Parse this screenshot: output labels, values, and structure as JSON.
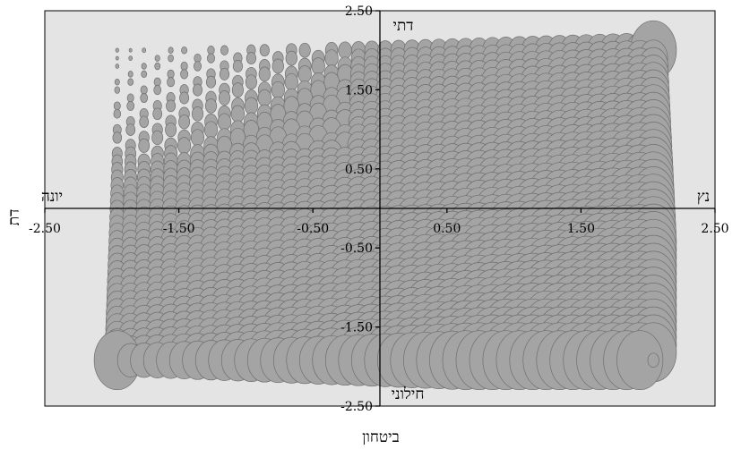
{
  "chart_data": {
    "type": "scatter",
    "variant": "bubble",
    "xlabel": "ביטחון",
    "ylabel": "דת",
    "xlim": [
      -2.5,
      2.5
    ],
    "ylim": [
      -2.5,
      2.5
    ],
    "x_ticks": [
      -2.5,
      -1.5,
      -0.5,
      0.5,
      1.5,
      2.5
    ],
    "x_tick_labels": [
      "-2.50",
      "-1.50",
      "-0.50",
      "0.50",
      "1.50",
      "2.50"
    ],
    "y_ticks": [
      2.5,
      1.5,
      0.5,
      -0.5,
      -1.5,
      -2.5
    ],
    "y_tick_labels": [
      "2.50",
      "1.50",
      "0.50",
      "-0.50",
      "-1.50",
      "-2.50"
    ],
    "axis_end_labels": {
      "x_left": "יונה",
      "x_right": "נץ",
      "y_top": "דתי",
      "y_bottom": "חילוני"
    },
    "grid": false,
    "legend": "none",
    "background_color": "#e4e4e4",
    "bubble_color": "#a4a4a4",
    "bubble_edge_color": "#6f6f6f",
    "grid_x_range": [
      -1.96,
      2.04
    ],
    "grid_y_range": [
      -1.92,
      2.0
    ],
    "grid_columns": 41,
    "grid_rows": 40,
    "highlight_points": [
      {
        "x": -1.96,
        "y": 2.0,
        "size": 0.07
      },
      {
        "x": 2.04,
        "y": 2.0,
        "size": 1.0
      },
      {
        "x": 2.04,
        "y": 1.24,
        "size": 0.38
      },
      {
        "x": -1.96,
        "y": -1.92,
        "size": 1.0
      },
      {
        "x": 2.04,
        "y": -1.92,
        "size": 0.24
      }
    ]
  }
}
